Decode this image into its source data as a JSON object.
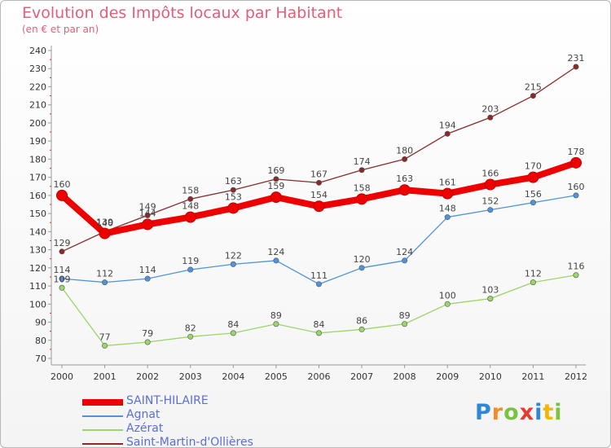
{
  "title": "Evolution des Impôts locaux par Habitant",
  "subtitle": "(en € et par an)",
  "logo": {
    "text": "Proxiti",
    "letters": [
      "P",
      "r",
      "o",
      "x",
      "i",
      "t",
      "i"
    ],
    "colors": [
      "#2e86d6",
      "#f28c28",
      "#7cc242",
      "#e63b2e",
      "#2e86d6",
      "#f2b705",
      "#7cc242"
    ]
  },
  "chart_data": {
    "type": "line",
    "title": "Evolution des Impôts locaux par Habitant",
    "subtitle": "(en € et par an)",
    "xlabel": "",
    "ylabel": "",
    "x": [
      "2000",
      "2001",
      "2002",
      "2003",
      "2004",
      "2005",
      "2006",
      "2007",
      "2008",
      "2009",
      "2010",
      "2011",
      "2012"
    ],
    "ylim": [
      70,
      240
    ],
    "yticks": [
      70,
      80,
      90,
      100,
      110,
      120,
      130,
      140,
      150,
      160,
      170,
      180,
      190,
      200,
      210,
      220,
      230,
      240
    ],
    "grid": false,
    "legend_position": "bottom-left",
    "series": [
      {
        "name": "SAINT-HILAIRE",
        "color": "#ee0000",
        "bold": true,
        "values": [
          160,
          139,
          144,
          148,
          153,
          159,
          154,
          158,
          163,
          161,
          166,
          170,
          178
        ]
      },
      {
        "name": "Agnat",
        "color": "#4f94d8",
        "bold": false,
        "values": [
          114,
          112,
          114,
          119,
          122,
          124,
          111,
          120,
          124,
          148,
          152,
          156,
          160
        ]
      },
      {
        "name": "Azérat",
        "color": "#9ad66a",
        "bold": false,
        "values": [
          109,
          77,
          79,
          82,
          84,
          89,
          84,
          86,
          89,
          100,
          103,
          112,
          116
        ]
      },
      {
        "name": "Saint-Martin-d'Ollières",
        "color": "#8b2a2a",
        "bold": false,
        "values": [
          129,
          140,
          149,
          158,
          163,
          169,
          167,
          174,
          180,
          194,
          203,
          215,
          231
        ]
      }
    ]
  }
}
